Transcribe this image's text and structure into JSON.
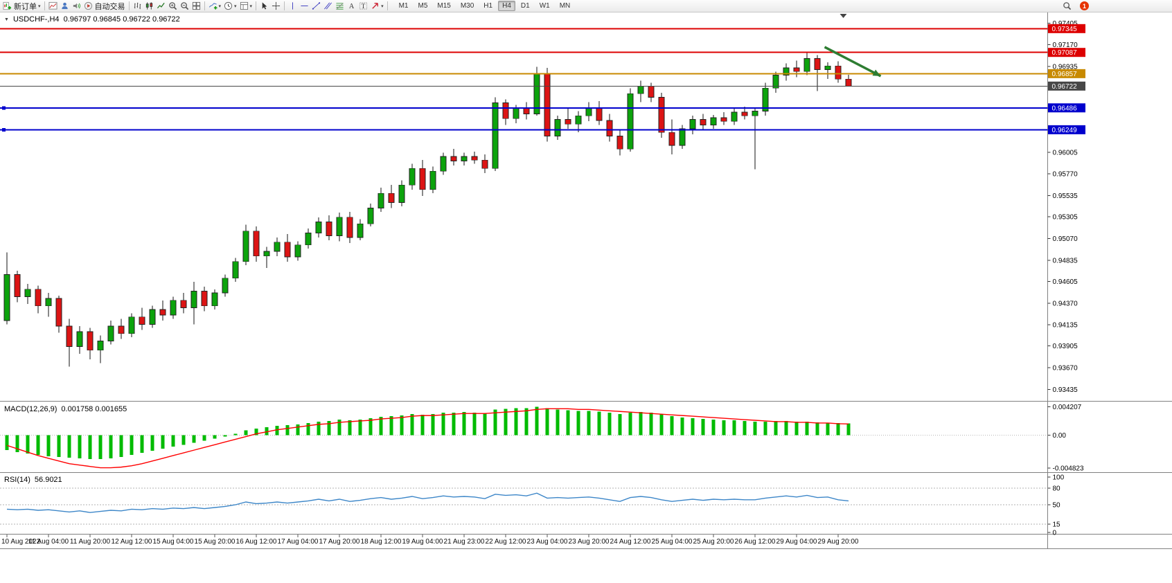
{
  "toolbar": {
    "new_order": "新订单",
    "auto_trading": "自动交易",
    "timeframes": [
      "M1",
      "M5",
      "M15",
      "M30",
      "H1",
      "H4",
      "D1",
      "W1",
      "MN"
    ],
    "active_timeframe": "H4",
    "notification_count": "1"
  },
  "chart_data": [
    {
      "type": "candlestick",
      "title": "USDCHF-,H4",
      "ohlc_display": "0.96797 0.96845 0.96722 0.96722",
      "x_labels": [
        "10 Aug 2022",
        "11 Aug 04:00",
        "11 Aug 20:00",
        "12 Aug 12:00",
        "15 Aug 04:00",
        "15 Aug 20:00",
        "16 Aug 12:00",
        "17 Aug 04:00",
        "17 Aug 20:00",
        "18 Aug 12:00",
        "19 Aug 04:00",
        "21 Aug 23:00",
        "22 Aug 12:00",
        "23 Aug 04:00",
        "23 Aug 20:00",
        "24 Aug 12:00",
        "25 Aug 04:00",
        "25 Aug 20:00",
        "26 Aug 12:00",
        "29 Aug 04:00",
        "29 Aug 20:00"
      ],
      "candles_per_label": 4,
      "ylim": [
        0.9331,
        0.9752
      ],
      "yticks": [
        "0.97405",
        "0.97170",
        "0.96935",
        "0.96700",
        "0.96465",
        "0.96230",
        "0.96005",
        "0.95770",
        "0.95535",
        "0.95305",
        "0.95070",
        "0.94835",
        "0.94605",
        "0.94370",
        "0.94135",
        "0.93905",
        "0.93670",
        "0.93435"
      ],
      "hlines": [
        {
          "label": "0.97345",
          "value": 0.97345,
          "color": "#dd0000",
          "width": 2,
          "handles": false
        },
        {
          "label": "0.97087",
          "value": 0.97087,
          "color": "#dd0000",
          "width": 2,
          "handles": false
        },
        {
          "label": "0.96857",
          "value": 0.96857,
          "color": "#c88a00",
          "width": 2,
          "handles": false
        },
        {
          "label": "0.96486",
          "value": 0.96486,
          "color": "#0000cd",
          "width": 2,
          "handles": true
        },
        {
          "label": "0.96249",
          "value": 0.96249,
          "color": "#0000cd",
          "width": 2,
          "handles": true
        }
      ],
      "bid_line": {
        "label": "0.96722",
        "value": 0.96722,
        "color": "#474747"
      },
      "arrow": {
        "from_index": 78.7,
        "from_price": 0.97145,
        "to_index": 84.1,
        "to_price": 0.9683,
        "color": "#2e7d32"
      },
      "shift_marker_index": 80.5,
      "colors": {
        "up": "#0ca30c",
        "down": "#dc1414",
        "wick": "#111111"
      },
      "ohlc": [
        [
          0.9418,
          0.9492,
          0.9414,
          0.9468
        ],
        [
          0.9468,
          0.9472,
          0.9438,
          0.9444
        ],
        [
          0.9444,
          0.9458,
          0.9436,
          0.9452
        ],
        [
          0.9452,
          0.9456,
          0.9426,
          0.9434
        ],
        [
          0.9434,
          0.9448,
          0.9422,
          0.9442
        ],
        [
          0.9442,
          0.9445,
          0.9405,
          0.9412
        ],
        [
          0.9412,
          0.942,
          0.9368,
          0.939
        ],
        [
          0.939,
          0.9412,
          0.9382,
          0.9406
        ],
        [
          0.9406,
          0.941,
          0.9376,
          0.9386
        ],
        [
          0.9386,
          0.9402,
          0.9372,
          0.9396
        ],
        [
          0.9396,
          0.9418,
          0.9392,
          0.9412
        ],
        [
          0.9412,
          0.942,
          0.9398,
          0.9404
        ],
        [
          0.9404,
          0.9426,
          0.94,
          0.9422
        ],
        [
          0.9422,
          0.9432,
          0.9408,
          0.9414
        ],
        [
          0.9414,
          0.9434,
          0.941,
          0.943
        ],
        [
          0.943,
          0.944,
          0.9418,
          0.9424
        ],
        [
          0.9424,
          0.9444,
          0.942,
          0.944
        ],
        [
          0.944,
          0.9448,
          0.9426,
          0.9432
        ],
        [
          0.9432,
          0.946,
          0.9414,
          0.945
        ],
        [
          0.945,
          0.9455,
          0.9428,
          0.9434
        ],
        [
          0.9434,
          0.9452,
          0.943,
          0.9448
        ],
        [
          0.9448,
          0.9468,
          0.9444,
          0.9464
        ],
        [
          0.9464,
          0.9486,
          0.946,
          0.9482
        ],
        [
          0.9482,
          0.9522,
          0.9478,
          0.9515
        ],
        [
          0.9515,
          0.952,
          0.9482,
          0.9488
        ],
        [
          0.9488,
          0.9498,
          0.9475,
          0.9493
        ],
        [
          0.9493,
          0.9508,
          0.9488,
          0.9503
        ],
        [
          0.9503,
          0.9512,
          0.9482,
          0.9487
        ],
        [
          0.9487,
          0.9504,
          0.9483,
          0.95
        ],
        [
          0.95,
          0.9518,
          0.9496,
          0.9513
        ],
        [
          0.9513,
          0.953,
          0.9508,
          0.9525
        ],
        [
          0.9525,
          0.9532,
          0.9505,
          0.951
        ],
        [
          0.951,
          0.9535,
          0.9504,
          0.953
        ],
        [
          0.953,
          0.9536,
          0.9502,
          0.9508
        ],
        [
          0.9508,
          0.9528,
          0.9505,
          0.9523
        ],
        [
          0.9523,
          0.9545,
          0.952,
          0.954
        ],
        [
          0.954,
          0.9562,
          0.9536,
          0.9556
        ],
        [
          0.9556,
          0.9565,
          0.954,
          0.9546
        ],
        [
          0.9546,
          0.957,
          0.9542,
          0.9565
        ],
        [
          0.9565,
          0.9588,
          0.956,
          0.9583
        ],
        [
          0.9583,
          0.9592,
          0.9553,
          0.956
        ],
        [
          0.956,
          0.9585,
          0.9556,
          0.958
        ],
        [
          0.958,
          0.96,
          0.9576,
          0.9596
        ],
        [
          0.9596,
          0.9604,
          0.9586,
          0.9591
        ],
        [
          0.9591,
          0.96,
          0.9586,
          0.9596
        ],
        [
          0.9596,
          0.9601,
          0.9588,
          0.9592
        ],
        [
          0.9592,
          0.9598,
          0.9578,
          0.9583
        ],
        [
          0.9583,
          0.966,
          0.958,
          0.9654
        ],
        [
          0.9654,
          0.9658,
          0.963,
          0.9637
        ],
        [
          0.9637,
          0.9652,
          0.9632,
          0.9648
        ],
        [
          0.9648,
          0.9655,
          0.9636,
          0.9642
        ],
        [
          0.9642,
          0.9693,
          0.964,
          0.9686
        ],
        [
          0.9686,
          0.9692,
          0.9612,
          0.9618
        ],
        [
          0.9618,
          0.964,
          0.9614,
          0.9636
        ],
        [
          0.9636,
          0.9648,
          0.9626,
          0.9631
        ],
        [
          0.9631,
          0.9645,
          0.9622,
          0.964
        ],
        [
          0.964,
          0.9655,
          0.9634,
          0.9649
        ],
        [
          0.9649,
          0.9656,
          0.963,
          0.9635
        ],
        [
          0.9635,
          0.9642,
          0.9612,
          0.9618
        ],
        [
          0.9618,
          0.9624,
          0.9597,
          0.9604
        ],
        [
          0.9604,
          0.967,
          0.9601,
          0.9664
        ],
        [
          0.9664,
          0.9678,
          0.9655,
          0.9672
        ],
        [
          0.9672,
          0.9676,
          0.9655,
          0.966
        ],
        [
          0.966,
          0.9665,
          0.9616,
          0.9622
        ],
        [
          0.9622,
          0.9636,
          0.9598,
          0.9608
        ],
        [
          0.9608,
          0.963,
          0.9604,
          0.9626
        ],
        [
          0.9626,
          0.964,
          0.962,
          0.9636
        ],
        [
          0.9636,
          0.9642,
          0.9624,
          0.963
        ],
        [
          0.963,
          0.9641,
          0.9626,
          0.9638
        ],
        [
          0.9638,
          0.9644,
          0.963,
          0.9634
        ],
        [
          0.9634,
          0.9648,
          0.963,
          0.9644
        ],
        [
          0.9644,
          0.965,
          0.9636,
          0.964
        ],
        [
          0.964,
          0.9648,
          0.9582,
          0.9645
        ],
        [
          0.9645,
          0.9676,
          0.964,
          0.967
        ],
        [
          0.967,
          0.9688,
          0.9665,
          0.9684
        ],
        [
          0.9684,
          0.9697,
          0.9678,
          0.9692
        ],
        [
          0.9692,
          0.97,
          0.9682,
          0.9688
        ],
        [
          0.9688,
          0.9709,
          0.9684,
          0.9702
        ],
        [
          0.9702,
          0.9706,
          0.9667,
          0.969
        ],
        [
          0.969,
          0.9698,
          0.968,
          0.9694
        ],
        [
          0.9694,
          0.9699,
          0.9676,
          0.96797
        ],
        [
          0.96797,
          0.96845,
          0.96722,
          0.96722
        ]
      ]
    },
    {
      "type": "bar",
      "name": "MACD(12,26,9)",
      "values_display": "0.001758 0.001655",
      "ylim": [
        -0.00535,
        0.00475
      ],
      "yticks": [
        "0.004207",
        "0.00",
        "-0.004823"
      ],
      "ytick_values": [
        0.004207,
        0,
        -0.004823
      ],
      "colors": {
        "histogram": "#00bb00",
        "signal": "#ff0000"
      },
      "histogram": [
        -0.0022,
        -0.0025,
        -0.0027,
        -0.0029,
        -0.0031,
        -0.0032,
        -0.0033,
        -0.0034,
        -0.0035,
        -0.0035,
        -0.0034,
        -0.0032,
        -0.0029,
        -0.0026,
        -0.0023,
        -0.002,
        -0.0017,
        -0.0014,
        -0.0011,
        -0.0008,
        -0.0005,
        -0.0002,
        0.0002,
        0.0007,
        0.001,
        0.0012,
        0.0014,
        0.0015,
        0.0016,
        0.0018,
        0.002,
        0.0021,
        0.0023,
        0.0022,
        0.0023,
        0.0025,
        0.0027,
        0.0028,
        0.0029,
        0.0031,
        0.003,
        0.0031,
        0.0033,
        0.0033,
        0.0034,
        0.0033,
        0.0032,
        0.0038,
        0.0039,
        0.004,
        0.004,
        0.0042,
        0.004,
        0.0038,
        0.0037,
        0.0036,
        0.0036,
        0.0035,
        0.0033,
        0.0031,
        0.0033,
        0.0034,
        0.0033,
        0.0031,
        0.0028,
        0.0026,
        0.0025,
        0.0024,
        0.0023,
        0.0022,
        0.0022,
        0.0021,
        0.002,
        0.002,
        0.0021,
        0.0021,
        0.002,
        0.002,
        0.0019,
        0.0018,
        0.0018,
        0.001758
      ],
      "signal": [
        -0.0015,
        -0.002,
        -0.0025,
        -0.003,
        -0.0034,
        -0.0038,
        -0.0042,
        -0.0044,
        -0.0046,
        -0.0048,
        -0.0048,
        -0.0047,
        -0.0045,
        -0.0042,
        -0.0038,
        -0.0034,
        -0.003,
        -0.0026,
        -0.0022,
        -0.0018,
        -0.0014,
        -0.001,
        -0.0006,
        -0.0002,
        0.0002,
        0.0005,
        0.0008,
        0.001,
        0.0012,
        0.0014,
        0.0016,
        0.0017,
        0.0019,
        0.002,
        0.0021,
        0.0022,
        0.0024,
        0.0025,
        0.0026,
        0.0028,
        0.0029,
        0.0029,
        0.003,
        0.0031,
        0.0032,
        0.0032,
        0.0032,
        0.0033,
        0.0034,
        0.0035,
        0.0036,
        0.0038,
        0.0039,
        0.0039,
        0.0039,
        0.0038,
        0.0038,
        0.0037,
        0.0036,
        0.0035,
        0.0034,
        0.0033,
        0.0032,
        0.0031,
        0.003,
        0.0029,
        0.0028,
        0.0027,
        0.0026,
        0.0025,
        0.0024,
        0.0023,
        0.0022,
        0.0021,
        0.002,
        0.002,
        0.0019,
        0.0019,
        0.0018,
        0.0018,
        0.0017,
        0.001655
      ]
    },
    {
      "type": "line",
      "name": "RSI(14)",
      "value_display": "56.9021",
      "ylim": [
        0,
        100
      ],
      "color": "#3c86c8",
      "levels": [
        {
          "label": "100",
          "value": 100
        },
        {
          "label": "80",
          "value": 80
        },
        {
          "label": "50",
          "value": 50
        },
        {
          "label": "15",
          "value": 15
        },
        {
          "label": "0",
          "value": 0
        }
      ],
      "dashed_levels": [
        80,
        50,
        15
      ],
      "values": [
        42,
        41,
        42,
        40,
        41,
        39,
        37,
        39,
        36,
        38,
        40,
        39,
        42,
        41,
        43,
        42,
        44,
        43,
        45,
        43,
        45,
        47,
        50,
        55,
        52,
        53,
        55,
        53,
        55,
        57,
        60,
        57,
        60,
        56,
        58,
        61,
        63,
        60,
        62,
        65,
        61,
        63,
        66,
        64,
        65,
        64,
        61,
        69,
        67,
        68,
        66,
        71,
        62,
        63,
        62,
        63,
        64,
        62,
        59,
        56,
        63,
        65,
        63,
        59,
        56,
        58,
        60,
        58,
        60,
        59,
        60,
        59,
        59,
        62,
        64,
        66,
        64,
        67,
        63,
        64,
        59,
        56.9
      ]
    }
  ]
}
